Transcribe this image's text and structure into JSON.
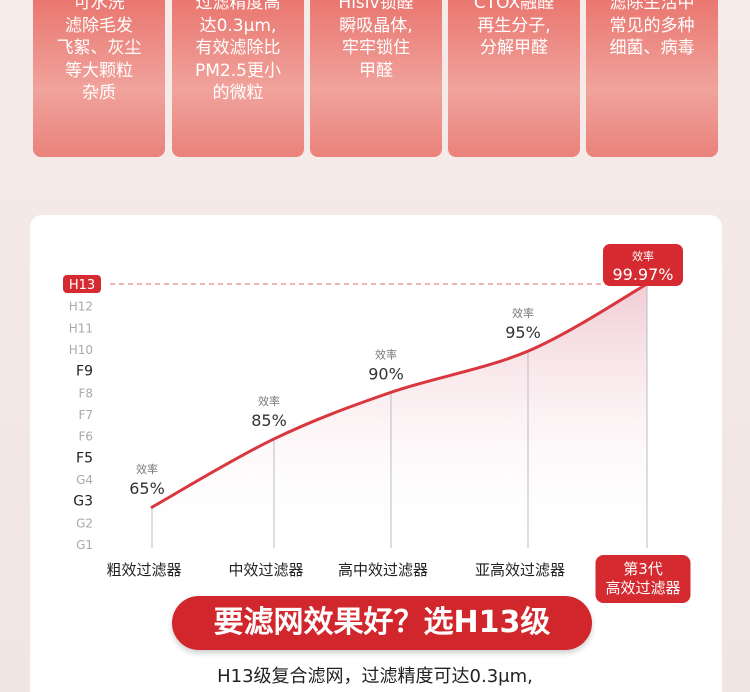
{
  "cards": [
    "可水洗\n滤除毛发\n飞絮、灰尘\n等大颗粒\n杂质",
    "过滤精度高\n达0.3μm,\n有效滤除比\nPM2.5更小\n的微粒",
    "Hisiv锁醛\n瞬吸晶体,\n牢牢锁住\n甲醛",
    "CTOX融醛\n再生分子,\n分解甲醛",
    "滤除生活中\n常见的多种\n细菌、病毒"
  ],
  "chart_data": {
    "type": "line",
    "color": "#d9363e",
    "categories": [
      "粗效过滤器",
      "中效过滤器",
      "高中效过滤器",
      "亚高效过滤器",
      "第3代\n高效过滤器"
    ],
    "values": [
      2.7,
      5.85,
      8.0,
      9.9,
      13
    ],
    "efficiency_label": "效率",
    "efficiency": [
      "65%",
      "85%",
      "90%",
      "95%",
      "99.97%"
    ],
    "ylim": [
      1,
      13
    ],
    "yticks": [
      {
        "value": 1,
        "label": "G1"
      },
      {
        "value": 2,
        "label": "G2"
      },
      {
        "value": 3,
        "label": "G3"
      },
      {
        "value": 4,
        "label": "G4"
      },
      {
        "value": 5,
        "label": "F5"
      },
      {
        "value": 6,
        "label": "F6"
      },
      {
        "value": 7,
        "label": "F7"
      },
      {
        "value": 8,
        "label": "F8"
      },
      {
        "value": 9,
        "label": "F9"
      },
      {
        "value": 10,
        "label": "H10"
      },
      {
        "value": 11,
        "label": "H11"
      },
      {
        "value": 12,
        "label": "H12"
      },
      {
        "value": 13,
        "label": "H13"
      }
    ]
  },
  "banner": "要滤网效果好？选H13级",
  "footer": "H13级复合滤网，过滤精度可达0.3μm,"
}
